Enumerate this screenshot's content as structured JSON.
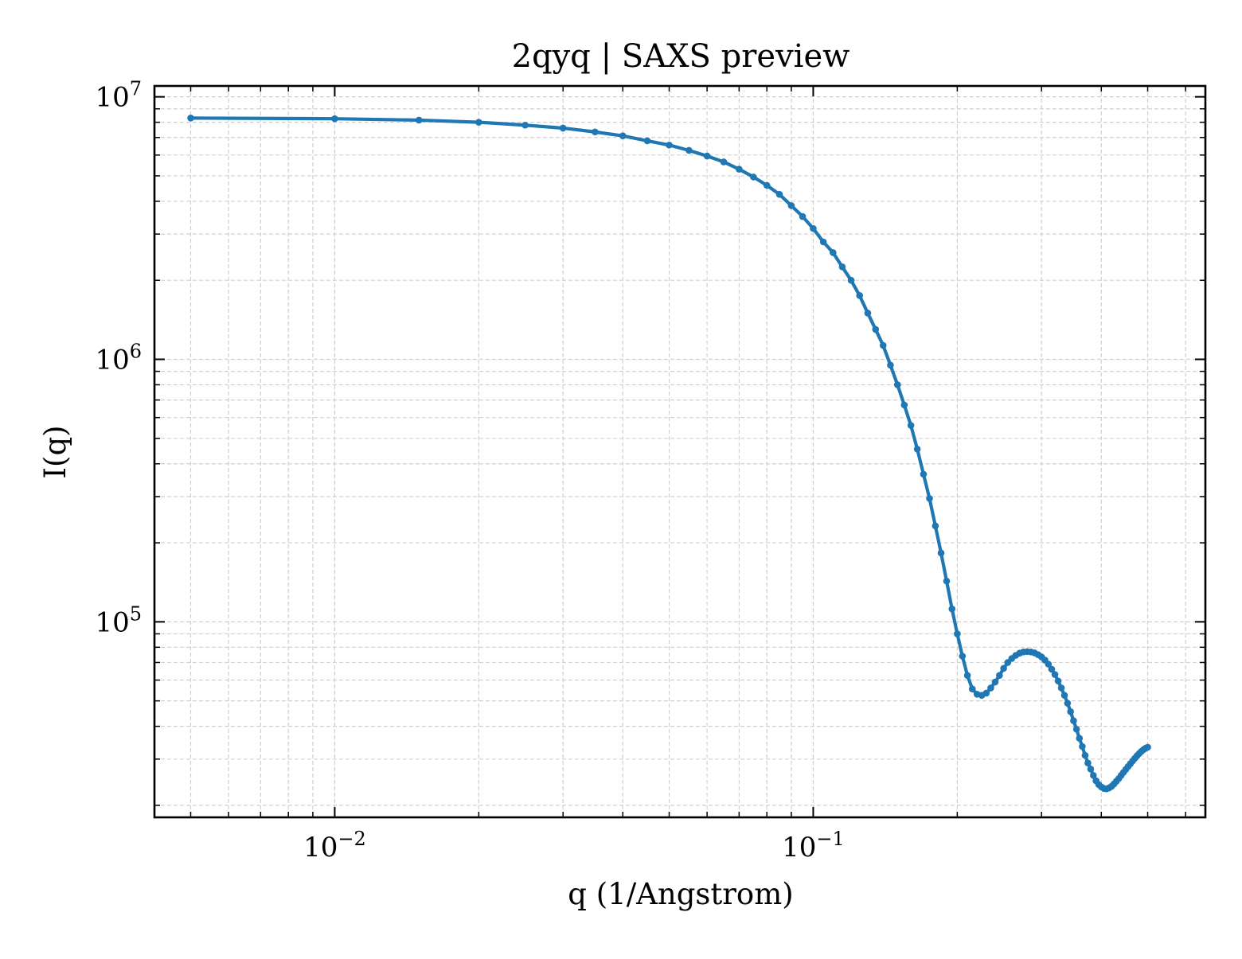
{
  "chart_data": {
    "type": "line",
    "title": "2qyq | SAXS preview",
    "xlabel": "q (1/Angstrom)",
    "ylabel": "I(q)",
    "xscale": "log",
    "yscale": "log",
    "xlim": [
      0.0042,
      0.66
    ],
    "ylim": [
      18000,
      11000000
    ],
    "xticks": [
      {
        "value": 0.01,
        "base": "10",
        "exp": "−2"
      },
      {
        "value": 0.1,
        "base": "10",
        "exp": "−1"
      }
    ],
    "yticks": [
      {
        "value": 100000,
        "base": "10",
        "exp": "5"
      },
      {
        "value": 1000000,
        "base": "10",
        "exp": "6"
      },
      {
        "value": 10000000,
        "base": "10",
        "exp": "7"
      }
    ],
    "grid": true,
    "line_color": "#1f77b4",
    "series": [
      {
        "marker": "dot",
        "x": [
          0.005,
          0.01,
          0.015,
          0.02,
          0.025,
          0.03,
          0.035,
          0.04,
          0.045,
          0.05,
          0.055,
          0.06,
          0.065,
          0.07,
          0.075,
          0.08,
          0.085,
          0.09,
          0.095,
          0.1,
          0.105,
          0.11,
          0.115,
          0.12,
          0.125,
          0.13,
          0.135,
          0.14,
          0.145,
          0.15,
          0.155,
          0.16,
          0.165,
          0.17,
          0.175,
          0.18,
          0.185,
          0.19,
          0.195,
          0.2,
          0.205,
          0.21,
          0.215,
          0.22,
          0.225,
          0.23,
          0.235,
          0.24,
          0.245,
          0.25,
          0.255,
          0.26,
          0.265,
          0.27,
          0.275,
          0.28,
          0.285,
          0.29,
          0.295,
          0.3,
          0.305,
          0.31,
          0.315,
          0.32,
          0.325,
          0.33,
          0.335,
          0.34,
          0.345,
          0.35,
          0.355,
          0.36,
          0.365,
          0.37,
          0.375,
          0.38,
          0.385,
          0.39,
          0.395,
          0.4,
          0.405,
          0.41,
          0.415,
          0.42,
          0.425,
          0.43,
          0.435,
          0.44,
          0.445,
          0.45,
          0.455,
          0.46,
          0.465,
          0.47,
          0.475,
          0.48,
          0.485,
          0.49,
          0.495,
          0.5
        ],
        "y": [
          8300000,
          8250000,
          8150000,
          8000000,
          7800000,
          7600000,
          7350000,
          7100000,
          6800000,
          6550000,
          6250000,
          5950000,
          5650000,
          5300000,
          4950000,
          4600000,
          4250000,
          3850000,
          3500000,
          3150000,
          2800000,
          2550000,
          2250000,
          2000000,
          1750000,
          1500000,
          1300000,
          1130000,
          950000,
          800000,
          670000,
          560000,
          455000,
          365000,
          295000,
          232000,
          183000,
          143000,
          112000,
          90000,
          74000,
          62500,
          55500,
          53000,
          52500,
          53500,
          56000,
          59000,
          62500,
          66500,
          70000,
          72500,
          74500,
          76000,
          76800,
          77000,
          76800,
          76200,
          75000,
          73500,
          71500,
          69000,
          66000,
          63000,
          59500,
          56000,
          52500,
          49000,
          45500,
          42000,
          39000,
          36000,
          33500,
          31000,
          29000,
          27500,
          26000,
          24800,
          24000,
          23500,
          23200,
          23100,
          23300,
          23600,
          24100,
          24700,
          25300,
          26000,
          26700,
          27400,
          28100,
          28800,
          29500,
          30200,
          30900,
          31500,
          32100,
          32600,
          33000,
          33300
        ]
      }
    ]
  }
}
